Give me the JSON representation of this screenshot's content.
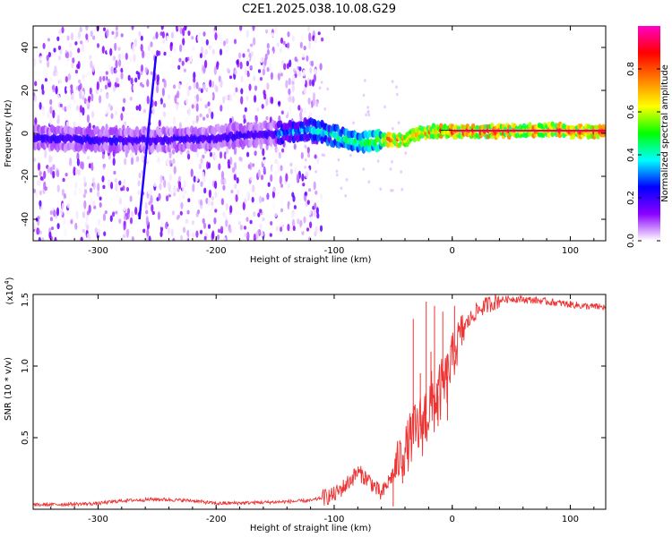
{
  "title": "C2E1.2025.038.10.08.G29",
  "chart_data": [
    {
      "type": "heatmap",
      "title": "C2E1.2025.038.10.08.G29",
      "xlabel": "Height of straight line (km)",
      "ylabel": "Frequency (Hz)",
      "xlim": [
        -355,
        130
      ],
      "ylim": [
        -50,
        50
      ],
      "xticks": [
        -300,
        -200,
        -100,
        0,
        100
      ],
      "xtick_labels": [
        "-300",
        "-200",
        "-100",
        "0",
        "100"
      ],
      "yticks": [
        -40,
        -20,
        0,
        20,
        40
      ],
      "ytick_labels": [
        "-40",
        "-20",
        "0",
        "20",
        "40"
      ],
      "ridge": {
        "x": [
          -355,
          -300,
          -250,
          -200,
          -150,
          -120,
          -100,
          -90,
          -80,
          -70,
          -60,
          -50,
          -40,
          -30,
          -20,
          -10,
          0,
          20,
          50,
          90,
          100,
          130
        ],
        "freq": [
          -2,
          -3,
          -3,
          -2,
          0,
          2,
          -1,
          -3,
          -4,
          -4,
          -3,
          -3,
          -3,
          0,
          1,
          1,
          1,
          1,
          1,
          2,
          1,
          1
        ]
      },
      "streak": {
        "x": [
          -265,
          -251
        ],
        "freq": [
          -40,
          36
        ]
      },
      "noise_edge_km": -125,
      "colorbar": {
        "label": "Normalized spectral amplitude",
        "range": [
          0,
          1
        ],
        "ticks": [
          0.0,
          0.2,
          0.4,
          0.6,
          0.8
        ],
        "tick_labels": [
          "0.0",
          "0.2",
          "0.4",
          "0.6",
          "0.8"
        ],
        "colors": [
          "#ffffff",
          "#8a00ff",
          "#0000ff",
          "#00ffff",
          "#00ff00",
          "#ffff00",
          "#ff7f00",
          "#ff0000",
          "#ff00c8"
        ]
      }
    },
    {
      "type": "line",
      "xlabel": "Height of straight line (km)",
      "ylabel": "SNR (10 * v/v)",
      "scale_label": "(x10",
      "scale_exp": "4",
      "scale_close": ")",
      "xlim": [
        -355,
        130
      ],
      "ylim": [
        0,
        1.5
      ],
      "xticks": [
        -300,
        -200,
        -100,
        0,
        100
      ],
      "xtick_labels": [
        "-300",
        "-200",
        "-100",
        "0",
        "100"
      ],
      "yticks": [
        0.5,
        1.0,
        1.5
      ],
      "ytick_labels": [
        "0.5",
        "1.0",
        "1.5"
      ],
      "color": "#ee3333",
      "series": [
        {
          "name": "SNR",
          "x": [
            -355,
            -300,
            -280,
            -250,
            -220,
            -200,
            -150,
            -120,
            -100,
            -90,
            -80,
            -70,
            -60,
            -50,
            -45,
            -40,
            -35,
            -30,
            -25,
            -20,
            -15,
            -10,
            -5,
            0,
            5,
            10,
            20,
            30,
            40,
            50,
            70,
            90,
            110,
            130
          ],
          "y": [
            0.03,
            0.04,
            0.06,
            0.07,
            0.06,
            0.04,
            0.05,
            0.06,
            0.1,
            0.17,
            0.26,
            0.2,
            0.1,
            0.25,
            0.35,
            0.4,
            0.5,
            0.55,
            0.6,
            0.7,
            0.75,
            0.82,
            0.9,
            1.05,
            1.17,
            1.27,
            1.38,
            1.43,
            1.46,
            1.47,
            1.46,
            1.44,
            1.42,
            1.41
          ]
        }
      ],
      "spikes": [
        {
          "x": -50,
          "y": 0.02
        },
        {
          "x": -42,
          "y": 0.18
        },
        {
          "x": -33,
          "y": 1.33
        },
        {
          "x": -27,
          "y": 0.95
        },
        {
          "x": -22,
          "y": 1.45
        },
        {
          "x": -18,
          "y": 1.1
        },
        {
          "x": -15,
          "y": 1.42
        },
        {
          "x": -12,
          "y": 0.58
        },
        {
          "x": -8,
          "y": 1.38
        },
        {
          "x": -4,
          "y": 0.62
        },
        {
          "x": 2,
          "y": 1.42
        }
      ]
    }
  ]
}
